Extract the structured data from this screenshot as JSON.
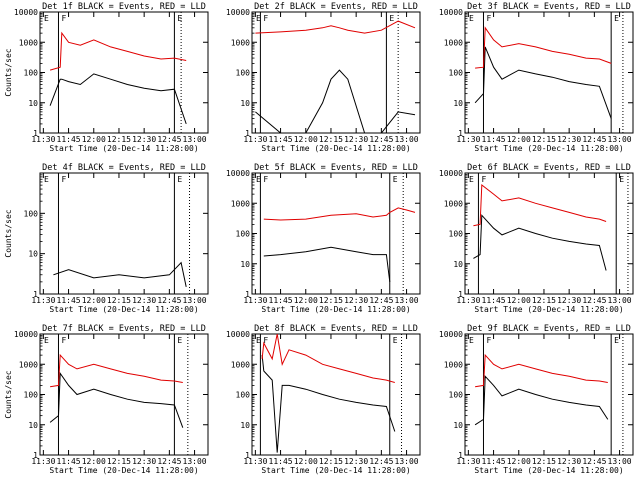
{
  "figure": {
    "x_tick_labels": [
      "11:30",
      "11:45",
      "12:00",
      "12:15",
      "12:30",
      "12:45",
      "13:00"
    ],
    "colors": {
      "events": "#000000",
      "lld": "#e00000",
      "axes": "#000000",
      "background": "#ffffff"
    }
  },
  "chart_data": [
    {
      "type": "line",
      "title": "Det 1f BLACK = Events, RED = LLD",
      "xlabel": "Start Time (20-Dec-14 11:28:00)",
      "ylabel": "Counts/sec",
      "xlim": [
        "11:28",
        "13:08"
      ],
      "ylim": [
        1,
        10000
      ],
      "yscale": "log",
      "y_tick_labels": [
        "1",
        "10",
        "100",
        "1000",
        "10000"
      ],
      "x": [
        "11:34",
        "11:40",
        "11:41",
        "11:45",
        "11:52",
        "12:00",
        "12:10",
        "12:20",
        "12:30",
        "12:40",
        "12:48",
        "12:55"
      ],
      "series": [
        {
          "name": "Events",
          "color": "#000000",
          "values": [
            8,
            60,
            60,
            50,
            40,
            90,
            60,
            40,
            30,
            25,
            28,
            2
          ]
        },
        {
          "name": "LLD",
          "color": "#e00000",
          "values": [
            120,
            150,
            2000,
            1000,
            800,
            1200,
            700,
            500,
            350,
            280,
            300,
            250
          ]
        }
      ],
      "markers": {
        "vertical_lines": [
          "11:39",
          "12:48"
        ],
        "dotted_lines": [
          "12:52"
        ],
        "labels": [
          "E",
          "F",
          "E"
        ]
      }
    },
    {
      "type": "line",
      "title": "Det 2f BLACK = Events, RED = LLD",
      "xlabel": "Start Time (20-Dec-14 11:28:00)",
      "ylabel": "",
      "xlim": [
        "11:28",
        "13:08"
      ],
      "ylim": [
        1,
        10000
      ],
      "yscale": "log",
      "y_tick_labels": [
        "1",
        "10",
        "100",
        "1000",
        "10000"
      ],
      "x": [
        "11:30",
        "11:45",
        "12:00",
        "12:10",
        "12:15",
        "12:20",
        "12:25",
        "12:35",
        "12:45",
        "12:55",
        "13:05"
      ],
      "series": [
        {
          "name": "Events",
          "color": "#000000",
          "values": [
            5,
            1,
            1,
            10,
            60,
            120,
            60,
            1,
            1,
            5,
            4
          ]
        },
        {
          "name": "LLD",
          "color": "#e00000",
          "values": [
            2000,
            2200,
            2500,
            3000,
            3500,
            3000,
            2500,
            2000,
            2500,
            5000,
            3000
          ]
        }
      ],
      "markers": {
        "vertical_lines": [
          "11:33",
          "12:48"
        ],
        "dotted_lines": [
          "12:55"
        ],
        "labels": [
          "E",
          "F",
          "E"
        ]
      }
    },
    {
      "type": "line",
      "title": "Det 3f BLACK = Events, RED = LLD",
      "xlabel": "Start Time (20-Dec-14 11:28:00)",
      "ylabel": "",
      "xlim": [
        "11:28",
        "13:08"
      ],
      "ylim": [
        1,
        10000
      ],
      "yscale": "log",
      "y_tick_labels": [
        "1",
        "10",
        "100",
        "1000",
        "10000"
      ],
      "x": [
        "11:34",
        "11:39",
        "11:40",
        "11:45",
        "11:50",
        "12:00",
        "12:10",
        "12:20",
        "12:30",
        "12:40",
        "12:48",
        "12:55"
      ],
      "series": [
        {
          "name": "Events",
          "color": "#000000",
          "values": [
            10,
            20,
            700,
            150,
            60,
            120,
            90,
            70,
            50,
            40,
            35,
            3
          ]
        },
        {
          "name": "LLD",
          "color": "#e00000",
          "values": [
            140,
            150,
            3000,
            1200,
            700,
            900,
            700,
            500,
            400,
            300,
            280,
            200
          ]
        }
      ],
      "markers": {
        "vertical_lines": [
          "11:39",
          "12:55"
        ],
        "dotted_lines": [
          "13:02"
        ],
        "labels": [
          "E",
          "F",
          "E"
        ]
      }
    },
    {
      "type": "line",
      "title": "Det 4f BLACK = Events, RED = LLD",
      "xlabel": "Start Time (20-Dec-14 11:28:00)",
      "ylabel": "Counts/sec",
      "xlim": [
        "11:28",
        "13:08"
      ],
      "ylim": [
        1,
        1000
      ],
      "yscale": "log",
      "y_tick_labels": [
        "1",
        "10",
        "100"
      ],
      "x": [
        "11:36",
        "11:45",
        "12:00",
        "12:15",
        "12:30",
        "12:45",
        "12:52",
        "12:55"
      ],
      "series": [
        {
          "name": "Events",
          "color": "#000000",
          "values": [
            3,
            4,
            2.5,
            3,
            2.5,
            3,
            6,
            1.5
          ]
        }
      ],
      "markers": {
        "vertical_lines": [
          "11:39",
          "12:48"
        ],
        "dotted_lines": [
          "12:57"
        ],
        "labels": [
          "E",
          "F",
          "E"
        ]
      }
    },
    {
      "type": "line",
      "title": "Det 5f BLACK = Events, RED = LLD",
      "xlabel": "Start Time (20-Dec-14 11:28:00)",
      "ylabel": "",
      "xlim": [
        "11:28",
        "13:08"
      ],
      "ylim": [
        1,
        10000
      ],
      "yscale": "log",
      "y_tick_labels": [
        "1",
        "10",
        "100",
        "1000",
        "10000"
      ],
      "x": [
        "11:35",
        "11:45",
        "12:00",
        "12:15",
        "12:30",
        "12:40",
        "12:48",
        "12:50",
        "12:55",
        "13:00",
        "13:05"
      ],
      "series": [
        {
          "name": "Events",
          "color": "#000000",
          "values": [
            18,
            20,
            25,
            35,
            25,
            20,
            20,
            2.5,
            null,
            null,
            null
          ]
        },
        {
          "name": "LLD",
          "color": "#e00000",
          "values": [
            300,
            280,
            300,
            400,
            450,
            350,
            400,
            500,
            700,
            600,
            500
          ]
        }
      ],
      "markers": {
        "vertical_lines": [
          "11:33",
          "12:50"
        ],
        "dotted_lines": [
          "12:58"
        ],
        "labels": [
          "E",
          "F",
          "E"
        ]
      }
    },
    {
      "type": "line",
      "title": "Det 6f BLACK = Events, RED = LLD",
      "xlabel": "Start Time (20-Dec-14 11:28:00)",
      "ylabel": "",
      "xlim": [
        "11:28",
        "13:08"
      ],
      "ylim": [
        1,
        10000
      ],
      "yscale": "log",
      "y_tick_labels": [
        "1",
        "10",
        "100",
        "1000",
        "10000"
      ],
      "x": [
        "11:33",
        "11:37",
        "11:38",
        "11:45",
        "11:50",
        "12:00",
        "12:10",
        "12:20",
        "12:30",
        "12:40",
        "12:48",
        "12:52"
      ],
      "series": [
        {
          "name": "Events",
          "color": "#000000",
          "values": [
            15,
            20,
            400,
            150,
            90,
            150,
            100,
            70,
            55,
            45,
            40,
            6
          ]
        },
        {
          "name": "LLD",
          "color": "#e00000",
          "values": [
            180,
            200,
            4000,
            2000,
            1200,
            1500,
            1000,
            700,
            500,
            350,
            300,
            250
          ]
        }
      ],
      "markers": {
        "vertical_lines": [
          "11:36",
          "12:58"
        ],
        "dotted_lines": [
          "13:05"
        ],
        "labels": [
          "E",
          "F",
          "E"
        ]
      }
    },
    {
      "type": "line",
      "title": "Det 7f BLACK = Events, RED = LLD",
      "xlabel": "Start Time (20-Dec-14 11:28:00)",
      "ylabel": "Counts/sec",
      "xlim": [
        "11:28",
        "13:08"
      ],
      "ylim": [
        1,
        10000
      ],
      "yscale": "log",
      "y_tick_labels": [
        "1",
        "10",
        "100",
        "1000",
        "10000"
      ],
      "x": [
        "11:34",
        "11:39",
        "11:40",
        "11:45",
        "11:50",
        "12:00",
        "12:10",
        "12:20",
        "12:30",
        "12:40",
        "12:48",
        "12:53"
      ],
      "series": [
        {
          "name": "Events",
          "color": "#000000",
          "values": [
            12,
            20,
            500,
            200,
            100,
            150,
            100,
            70,
            55,
            50,
            45,
            8
          ]
        },
        {
          "name": "LLD",
          "color": "#e00000",
          "values": [
            180,
            200,
            2000,
            1000,
            700,
            1000,
            700,
            500,
            400,
            300,
            280,
            250
          ]
        }
      ],
      "markers": {
        "vertical_lines": [
          "11:39",
          "12:48"
        ],
        "dotted_lines": [
          "12:56"
        ],
        "labels": [
          "E",
          "F",
          "E"
        ]
      }
    },
    {
      "type": "line",
      "title": "Det 8f BLACK = Events, RED = LLD",
      "xlabel": "Start Time (20-Dec-14 11:28:00)",
      "ylabel": "",
      "xlim": [
        "11:28",
        "13:08"
      ],
      "ylim": [
        1,
        10000
      ],
      "yscale": "log",
      "y_tick_labels": [
        "1",
        "10",
        "100",
        "1000",
        "10000"
      ],
      "x": [
        "11:34",
        "11:35",
        "11:40",
        "11:43",
        "11:46",
        "11:50",
        "12:00",
        "12:10",
        "12:20",
        "12:30",
        "12:40",
        "12:48",
        "12:53"
      ],
      "series": [
        {
          "name": "Events",
          "color": "#000000",
          "values": [
            2000,
            600,
            300,
            1.2,
            200,
            200,
            150,
            100,
            70,
            55,
            45,
            40,
            6
          ]
        },
        {
          "name": "LLD",
          "color": "#e00000",
          "values": [
            1500,
            5000,
            1500,
            10000,
            1000,
            3000,
            2000,
            1000,
            700,
            500,
            350,
            300,
            250
          ]
        }
      ],
      "markers": {
        "vertical_lines": [
          "11:33",
          "12:50"
        ],
        "dotted_lines": [
          "12:57"
        ],
        "labels": [
          "E",
          "F",
          "E"
        ]
      }
    },
    {
      "type": "line",
      "title": "Det 9f BLACK = Events, RED = LLD",
      "xlabel": "Start Time (20-Dec-14 11:28:00)",
      "ylabel": "",
      "xlim": [
        "11:28",
        "13:08"
      ],
      "ylim": [
        1,
        10000
      ],
      "yscale": "log",
      "y_tick_labels": [
        "1",
        "10",
        "100",
        "1000",
        "10000"
      ],
      "x": [
        "11:34",
        "11:39",
        "11:40",
        "11:45",
        "11:50",
        "12:00",
        "12:10",
        "12:20",
        "12:30",
        "12:40",
        "12:48",
        "12:53"
      ],
      "series": [
        {
          "name": "Events",
          "color": "#000000",
          "values": [
            10,
            15,
            400,
            200,
            90,
            150,
            100,
            70,
            55,
            45,
            40,
            15
          ]
        },
        {
          "name": "LLD",
          "color": "#e00000",
          "values": [
            180,
            200,
            2000,
            1000,
            700,
            1000,
            700,
            500,
            400,
            300,
            280,
            250
          ]
        }
      ],
      "markers": {
        "vertical_lines": [
          "11:39",
          "12:55"
        ],
        "dotted_lines": [
          "13:02"
        ],
        "labels": [
          "E",
          "F",
          "E"
        ]
      }
    }
  ]
}
